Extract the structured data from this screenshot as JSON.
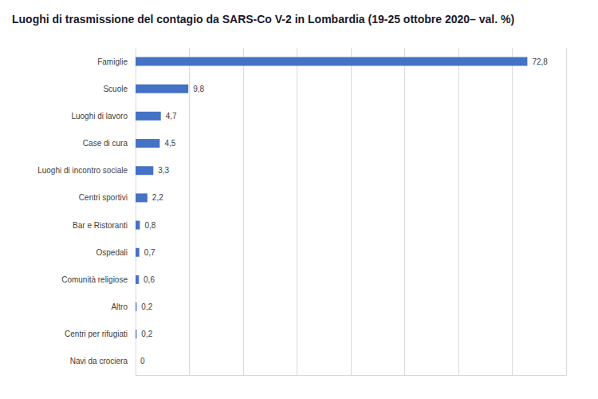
{
  "chart_data": {
    "type": "bar",
    "title": "Luoghi di trasmissione del contagio da SARS-Co V-2 in Lombardia (19-25 ottobre 2020– val. %)",
    "orientation": "horizontal",
    "categories": [
      "Famiglie",
      "Scuole",
      "Luoghi di lavoro",
      "Case di cura",
      "Luoghi di incontro sociale",
      "Centri sportivi",
      "Bar e Ristoranti",
      "Ospedali",
      "Comunità religiose",
      "Altro",
      "Centri per rifugiati",
      "Navi da crociera"
    ],
    "values": [
      72.8,
      9.8,
      4.7,
      4.5,
      3.3,
      2.2,
      0.8,
      0.7,
      0.6,
      0.2,
      0.2,
      0
    ],
    "value_labels": [
      "72,8",
      "9,8",
      "4,7",
      "4,5",
      "3,3",
      "2,2",
      "0,8",
      "0,7",
      "0,6",
      "0,2",
      "0,2",
      "0"
    ],
    "color": "#4472c4",
    "xlim": [
      0,
      80
    ],
    "xticks": [
      0,
      10,
      20,
      30,
      40,
      50,
      60,
      70,
      80
    ],
    "grid": true,
    "data_labels": true,
    "tick_labels": "y"
  }
}
